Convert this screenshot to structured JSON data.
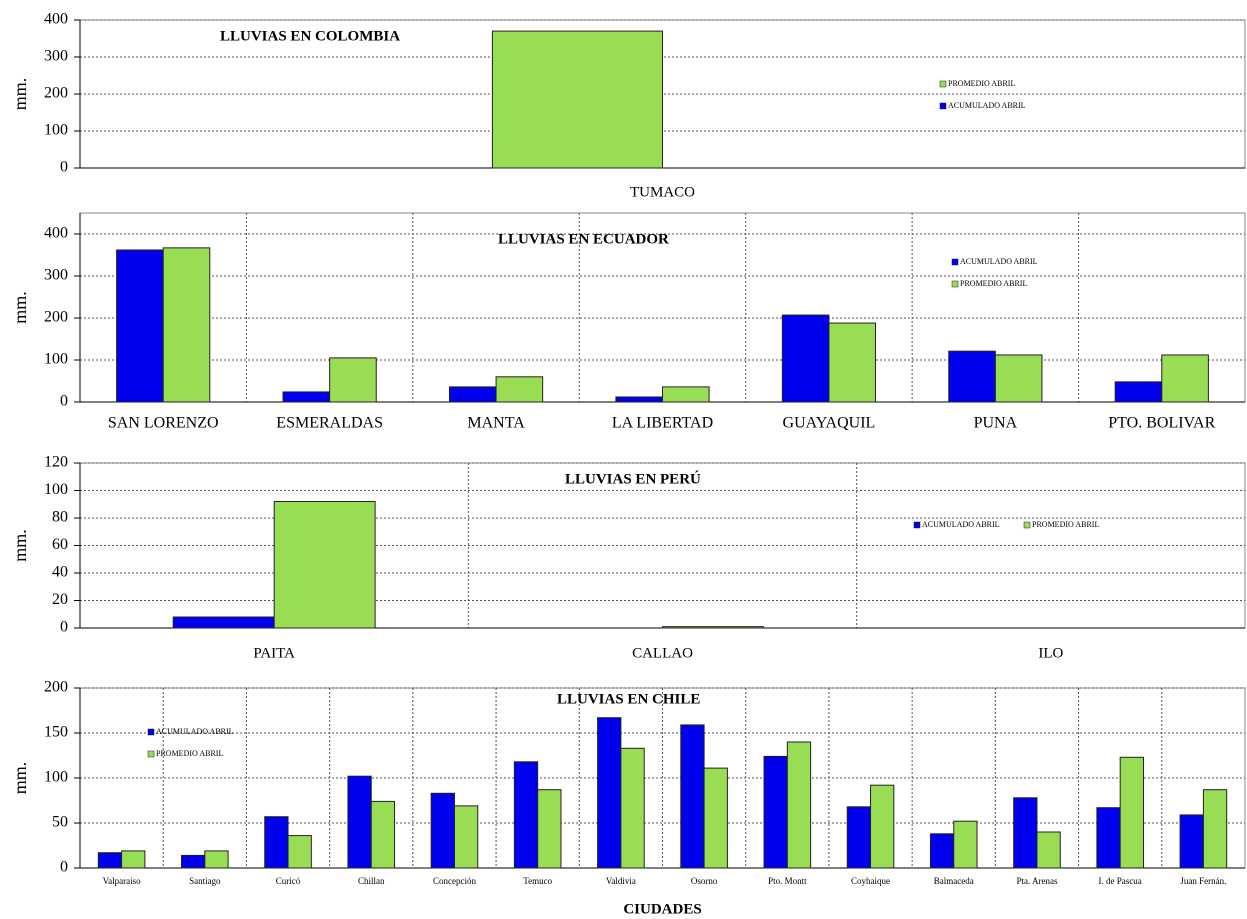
{
  "chart_data": [
    {
      "type": "bar",
      "title": "LLUVIAS EN COLOMBIA",
      "y_label": "mm.",
      "categories": [
        "TUMACO"
      ],
      "series": [
        {
          "name": "PROMEDIO ABRIL",
          "color": "#99dd55",
          "values": [
            370
          ]
        },
        {
          "name": "ACUMULADO ABRIL",
          "color": "#0000ee",
          "values": [
            null
          ]
        }
      ],
      "ylim": [
        0,
        400
      ],
      "yticks": [
        0,
        100,
        200,
        300,
        400
      ],
      "grid": true,
      "legend": "right"
    },
    {
      "type": "bar",
      "title": "LLUVIAS EN ECUADOR",
      "y_label": "mm.",
      "categories": [
        "SAN LORENZO",
        "ESMERALDAS",
        "MANTA",
        "LA LIBERTAD",
        "GUAYAQUIL",
        "PUNA",
        "PTO. BOLIVAR"
      ],
      "series": [
        {
          "name": "ACUMULADO ABRIL",
          "color": "#0000ee",
          "values": [
            362,
            24,
            36,
            12,
            207,
            121,
            48
          ]
        },
        {
          "name": "PROMEDIO ABRIL",
          "color": "#99dd55",
          "values": [
            367,
            105,
            60,
            36,
            188,
            112,
            112
          ]
        }
      ],
      "ylim": [
        0,
        450
      ],
      "yticks": [
        0,
        100,
        200,
        300,
        400
      ],
      "grid": true,
      "legend": "right"
    },
    {
      "type": "bar",
      "title": "LLUVIAS EN PERÚ",
      "y_label": "mm.",
      "categories": [
        "PAITA",
        "CALLAO",
        "ILO"
      ],
      "series": [
        {
          "name": "ACUMULADO ABRIL",
          "color": "#0000ee",
          "values": [
            8,
            0,
            null
          ]
        },
        {
          "name": "PROMEDIO ABRIL",
          "color": "#99dd55",
          "values": [
            92,
            1,
            null
          ]
        }
      ],
      "ylim": [
        0,
        120
      ],
      "yticks": [
        0,
        20,
        40,
        60,
        80,
        100,
        120
      ],
      "grid": true,
      "legend": "right"
    },
    {
      "type": "bar",
      "title": "LLUVIAS EN CHILE",
      "y_label": "mm.",
      "x_label": "CIUDADES",
      "categories": [
        "Valparaiso",
        "Santiago",
        "Curicó",
        "Chillan",
        "Concepción",
        "Temuco",
        "Valdivia",
        "Osorno",
        "Pto. Montt",
        "Coyhaique",
        "Balmaceda",
        "Pta. Arenas",
        "I. de Pascua",
        "Juan Fernán."
      ],
      "series": [
        {
          "name": "ACUMULADO ABRIL",
          "color": "#0000ee",
          "values": [
            17,
            14,
            57,
            102,
            83,
            118,
            167,
            159,
            124,
            68,
            38,
            78,
            67,
            59
          ]
        },
        {
          "name": "PROMEDIO ABRIL",
          "color": "#99dd55",
          "values": [
            19,
            19,
            36,
            74,
            69,
            87,
            133,
            111,
            140,
            92,
            52,
            40,
            123,
            87
          ]
        }
      ],
      "ylim": [
        0,
        200
      ],
      "yticks": [
        0,
        50,
        100,
        150,
        200
      ],
      "grid": true,
      "legend": "upper left"
    }
  ]
}
